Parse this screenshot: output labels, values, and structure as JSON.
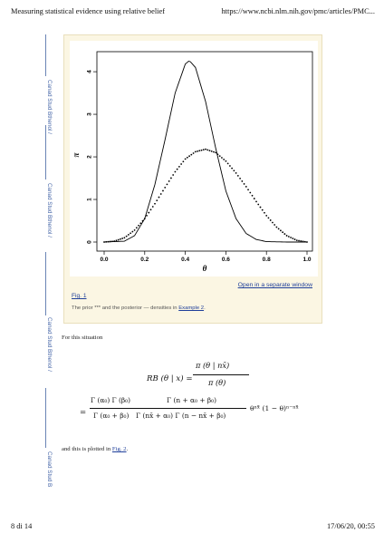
{
  "header": {
    "doc_title": "Measuring statistical evidence using relative belief",
    "url": "https://www.ncbi.nlm.nih.gov/pmc/articles/PMC..."
  },
  "side_labels": [
    "Canad Stud Bthenol /",
    "Canad Stud Bthenol /",
    "Canad Stud Bthenol /",
    "Canad Stud B"
  ],
  "figure": {
    "open_link": "Open in a separate window",
    "fig_link": "Fig. 1",
    "caption_prefix": "The prior *** and the posterior — densities in",
    "caption_link": "Example 2",
    "caption_suffix": "."
  },
  "chart_data": {
    "type": "line",
    "xlabel": "θ",
    "ylabel": "π",
    "xlim": [
      0,
      1
    ],
    "ylim": [
      0,
      4.3
    ],
    "x_ticks": [
      "0.0",
      "0.2",
      "0.4",
      "0.6",
      "0.8",
      "1.0"
    ],
    "y_ticks": [
      "0",
      "1",
      "2",
      "3",
      "4"
    ],
    "series": [
      {
        "style": "solid",
        "x": [
          0.0,
          0.1,
          0.15,
          0.2,
          0.25,
          0.3,
          0.35,
          0.4,
          0.42,
          0.45,
          0.5,
          0.55,
          0.6,
          0.65,
          0.7,
          0.75,
          0.8,
          0.9,
          1.0
        ],
        "y": [
          0.0,
          0.02,
          0.15,
          0.55,
          1.35,
          2.4,
          3.5,
          4.18,
          4.26,
          4.1,
          3.3,
          2.2,
          1.2,
          0.55,
          0.2,
          0.06,
          0.01,
          0.0,
          0.0
        ]
      },
      {
        "style": "dotted",
        "x": [
          0.0,
          0.05,
          0.1,
          0.15,
          0.2,
          0.25,
          0.3,
          0.35,
          0.4,
          0.45,
          0.5,
          0.55,
          0.6,
          0.65,
          0.7,
          0.75,
          0.8,
          0.85,
          0.9,
          0.95,
          1.0
        ],
        "y": [
          0.0,
          0.02,
          0.1,
          0.28,
          0.55,
          0.9,
          1.28,
          1.65,
          1.95,
          2.12,
          2.18,
          2.1,
          1.9,
          1.62,
          1.3,
          0.95,
          0.62,
          0.35,
          0.15,
          0.04,
          0.0
        ]
      }
    ]
  },
  "text": {
    "intro": "For this situation",
    "outro_prefix": "and this is plotted in",
    "outro_link": "Fig. 2",
    "outro_suffix": "."
  },
  "formula": {
    "lhs": "RB (θ | x) =",
    "num1": "π (θ | nx̄)",
    "den1": "π (θ)",
    "eq": "=",
    "frac_a_num": "Γ (α₀) Γ (β₀)",
    "frac_a_den": "Γ (α₀ + β₀)",
    "frac_b_num": "Γ (n + α₀ + β₀)",
    "frac_b_den": "Γ (nx̄ + α₀) Γ (n − nx̄ + β₀)",
    "tail": "θⁿˣ̄ (1 − θ)ⁿ⁻ⁿˣ̄"
  },
  "footer": {
    "page": "8 di 14",
    "datetime": "17/06/20, 00:55"
  }
}
